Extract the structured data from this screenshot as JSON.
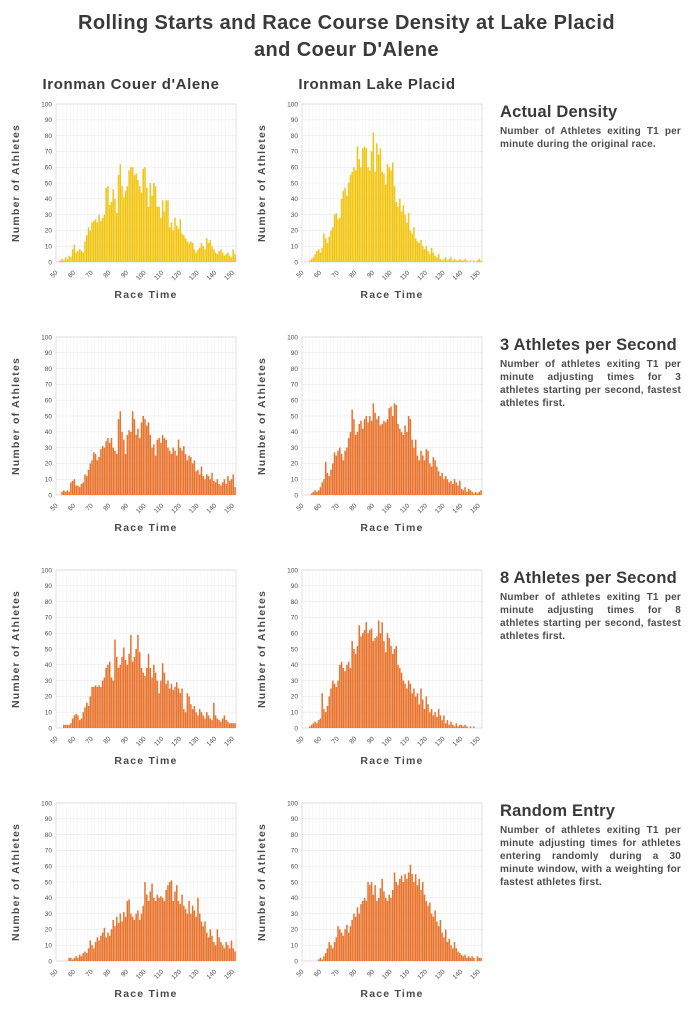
{
  "title": {
    "line1": "Rolling Starts and Race Course Density at Lake Placid",
    "line2": "and Coeur D'Alene"
  },
  "columns": [
    "Ironman Couer d'Alene",
    "Ironman Lake Placid"
  ],
  "rows": [
    {
      "heading": "Actual Density",
      "description": "Number of Athletes exiting T1 per minute during the original race."
    },
    {
      "heading": "3 Athletes per Second",
      "description": "Number of athletes exiting T1 per minute adjusting times for 3 athletes starting per second, fastest athletes first."
    },
    {
      "heading": "8 Athletes per Second",
      "description": "Number of athletes exiting T1 per minute adjusting times for 8 athletes starting per second, fastest athletes first."
    },
    {
      "heading": "Random Entry",
      "description": "Number of athletes exiting T1 per minute adjusting times for athletes entering randomly during a 30 minute window, with a weighting for fastest athletes first."
    }
  ],
  "colors": {
    "actual_yellow": "#F2C511",
    "adjusted_orange": "#E8732C",
    "grid_minor": "#f1f1f1",
    "grid_major": "#e9e9e9",
    "frame": "#d8d8d8",
    "text_dark": "#3a3a3a",
    "text_body": "#4d4d4d"
  },
  "axis": {
    "xlabel": "Race Time",
    "ylabel": "Number of Athletes",
    "x_ticks": [
      50,
      60,
      70,
      80,
      90,
      100,
      110,
      120,
      130,
      140,
      150
    ],
    "y_ticks": [
      0,
      10,
      20,
      30,
      40,
      50,
      60,
      70,
      80,
      90,
      100
    ],
    "x_domain": [
      50,
      152
    ],
    "y_domain": [
      0,
      100
    ],
    "bin_minutes": 1,
    "grid": true
  },
  "chart_data": [
    {
      "type": "bar",
      "name": "cda-actual",
      "race": "Ironman Couer d'Alene",
      "scenario": "Actual Density",
      "color": "#F2C511",
      "x_start": 52,
      "values": [
        1,
        2,
        1,
        3,
        2,
        4,
        3,
        8,
        11,
        6,
        7,
        8,
        7,
        6,
        13,
        17,
        22,
        20,
        25,
        26,
        27,
        25,
        30,
        26,
        28,
        30,
        47,
        48,
        36,
        38,
        46,
        40,
        31,
        55,
        62,
        48,
        41,
        45,
        48,
        58,
        60,
        60,
        55,
        56,
        52,
        48,
        44,
        59,
        60,
        47,
        35,
        50,
        42,
        50,
        48,
        35,
        35,
        28,
        39,
        32,
        39,
        39,
        22,
        25,
        20,
        28,
        23,
        21,
        27,
        18,
        17,
        15,
        13,
        12,
        13,
        12,
        8,
        6,
        8,
        9,
        12,
        10,
        8,
        15,
        12,
        14,
        10,
        8,
        6,
        5,
        7,
        8,
        6,
        4,
        5,
        6,
        4,
        3,
        8,
        5
      ]
    },
    {
      "type": "bar",
      "name": "lp-actual",
      "race": "Ironman Lake Placid",
      "scenario": "Actual Density",
      "color": "#F2C511",
      "x_start": 54,
      "values": [
        1,
        2,
        3,
        5,
        7,
        8,
        6,
        9,
        18,
        15,
        12,
        16,
        20,
        22,
        30,
        31,
        27,
        28,
        40,
        45,
        47,
        42,
        50,
        55,
        57,
        60,
        58,
        73,
        65,
        60,
        72,
        73,
        72,
        60,
        58,
        70,
        82,
        57,
        75,
        68,
        72,
        57,
        56,
        49,
        62,
        60,
        58,
        63,
        48,
        38,
        35,
        40,
        32,
        36,
        30,
        25,
        31,
        20,
        18,
        22,
        15,
        13,
        12,
        14,
        10,
        8,
        10,
        7,
        5,
        9,
        6,
        4,
        3,
        5,
        2,
        1,
        2,
        3,
        1,
        2,
        3,
        1,
        2,
        1,
        1,
        2,
        1,
        1,
        2,
        1,
        0,
        1,
        0,
        1,
        0,
        1,
        2,
        1
      ]
    },
    {
      "type": "bar",
      "name": "cda-3-per-second",
      "race": "Ironman Couer d'Alene",
      "scenario": "3 Athletes per Second",
      "color": "#E8732C",
      "x_start": 53,
      "values": [
        2,
        3,
        2,
        3,
        2,
        8,
        9,
        10,
        6,
        6,
        5,
        7,
        8,
        13,
        12,
        16,
        20,
        22,
        27,
        26,
        22,
        24,
        29,
        31,
        30,
        34,
        36,
        33,
        36,
        30,
        28,
        26,
        48,
        53,
        40,
        35,
        26,
        38,
        41,
        40,
        53,
        48,
        38,
        42,
        36,
        46,
        50,
        48,
        44,
        46,
        38,
        30,
        32,
        25,
        35,
        36,
        33,
        38,
        36,
        35,
        30,
        28,
        26,
        30,
        28,
        25,
        35,
        30,
        28,
        31,
        26,
        22,
        25,
        24,
        20,
        22,
        15,
        16,
        13,
        18,
        12,
        10,
        13,
        12,
        10,
        14,
        9,
        8,
        10,
        7,
        6,
        8,
        10,
        7,
        12,
        9,
        10,
        13,
        5
      ]
    },
    {
      "type": "bar",
      "name": "lp-3-per-second",
      "race": "Ironman Lake Placid",
      "scenario": "3 Athletes per Second",
      "color": "#E8732C",
      "x_start": 55,
      "values": [
        1,
        2,
        3,
        2,
        3,
        5,
        8,
        10,
        21,
        14,
        12,
        16,
        20,
        27,
        25,
        28,
        30,
        26,
        22,
        28,
        30,
        36,
        40,
        54,
        48,
        38,
        40,
        45,
        47,
        42,
        48,
        50,
        46,
        50,
        47,
        58,
        52,
        48,
        50,
        44,
        45,
        47,
        46,
        48,
        55,
        56,
        50,
        58,
        57,
        45,
        42,
        40,
        38,
        44,
        40,
        50,
        48,
        35,
        30,
        35,
        25,
        22,
        28,
        25,
        22,
        29,
        28,
        20,
        18,
        24,
        22,
        18,
        15,
        12,
        14,
        10,
        12,
        10,
        8,
        9,
        7,
        10,
        8,
        6,
        9,
        4,
        3,
        5,
        2,
        4,
        3,
        2,
        1,
        2,
        1,
        2,
        3
      ]
    },
    {
      "type": "bar",
      "name": "cda-8-per-second",
      "race": "Ironman Couer d'Alene",
      "scenario": "8 Athletes per Second",
      "color": "#E8732C",
      "x_start": 54,
      "values": [
        2,
        2,
        2,
        2,
        3,
        6,
        8,
        9,
        8,
        5,
        6,
        10,
        13,
        16,
        14,
        20,
        26,
        26,
        27,
        26,
        27,
        26,
        30,
        32,
        38,
        40,
        42,
        32,
        30,
        56,
        45,
        38,
        40,
        45,
        51,
        43,
        40,
        47,
        59,
        42,
        45,
        50,
        59,
        48,
        38,
        35,
        33,
        38,
        47,
        38,
        32,
        40,
        35,
        30,
        22,
        30,
        41,
        35,
        28,
        30,
        25,
        28,
        24,
        26,
        29,
        25,
        22,
        25,
        12,
        10,
        22,
        20,
        15,
        12,
        14,
        10,
        8,
        12,
        10,
        8,
        6,
        10,
        8,
        6,
        5,
        16,
        8,
        6,
        5,
        4,
        6,
        8,
        5,
        4,
        3,
        3,
        3,
        3
      ]
    },
    {
      "type": "bar",
      "name": "lp-8-per-second",
      "race": "Ironman Lake Placid",
      "scenario": "8 Athletes per Second",
      "color": "#E8732C",
      "x_start": 54,
      "values": [
        1,
        2,
        3,
        4,
        3,
        5,
        6,
        22,
        12,
        10,
        14,
        20,
        25,
        30,
        28,
        26,
        30,
        40,
        42,
        38,
        36,
        40,
        42,
        38,
        55,
        50,
        47,
        52,
        65,
        58,
        60,
        62,
        67,
        60,
        62,
        63,
        55,
        57,
        58,
        68,
        60,
        67,
        55,
        48,
        60,
        57,
        52,
        47,
        50,
        52,
        40,
        38,
        35,
        30,
        28,
        25,
        30,
        28,
        22,
        25,
        20,
        22,
        15,
        25,
        18,
        12,
        20,
        15,
        10,
        12,
        8,
        10,
        7,
        12,
        8,
        5,
        8,
        3,
        5,
        2,
        4,
        2,
        1,
        3,
        1,
        2,
        2,
        1,
        2,
        1,
        0,
        1,
        0,
        1
      ]
    },
    {
      "type": "bar",
      "name": "cda-random-entry",
      "race": "Ironman Couer d'Alene",
      "scenario": "Random Entry",
      "color": "#E8732C",
      "x_start": 57,
      "values": [
        2,
        2,
        1,
        2,
        3,
        2,
        4,
        3,
        5,
        6,
        5,
        8,
        13,
        10,
        8,
        12,
        15,
        13,
        16,
        18,
        21,
        15,
        18,
        16,
        20,
        26,
        22,
        28,
        24,
        30,
        25,
        31,
        28,
        38,
        39,
        30,
        28,
        26,
        30,
        32,
        26,
        30,
        35,
        50,
        42,
        38,
        44,
        49,
        40,
        38,
        42,
        40,
        41,
        40,
        38,
        45,
        48,
        50,
        51,
        38,
        44,
        48,
        38,
        36,
        42,
        35,
        33,
        30,
        38,
        30,
        35,
        32,
        28,
        40,
        30,
        25,
        22,
        25,
        18,
        15,
        20,
        16,
        12,
        10,
        20,
        15,
        12,
        10,
        8,
        12,
        10,
        8,
        13,
        8,
        6
      ]
    },
    {
      "type": "bar",
      "name": "lp-random-entry",
      "race": "Ironman Lake Placid",
      "scenario": "Random Entry",
      "color": "#E8732C",
      "x_start": 59,
      "values": [
        1,
        2,
        1,
        3,
        5,
        8,
        12,
        10,
        8,
        12,
        15,
        22,
        20,
        18,
        16,
        20,
        23,
        18,
        22,
        26,
        30,
        28,
        34,
        30,
        36,
        38,
        40,
        38,
        50,
        48,
        50,
        42,
        48,
        38,
        40,
        46,
        52,
        44,
        40,
        38,
        42,
        40,
        45,
        56,
        50,
        48,
        52,
        54,
        50,
        55,
        52,
        56,
        61,
        55,
        50,
        55,
        48,
        52,
        45,
        50,
        42,
        38,
        35,
        37,
        30,
        28,
        32,
        25,
        22,
        26,
        18,
        15,
        20,
        12,
        14,
        10,
        8,
        12,
        8,
        6,
        5,
        4,
        3,
        4,
        2,
        3,
        2,
        3,
        2,
        0,
        3,
        2,
        2
      ]
    }
  ]
}
